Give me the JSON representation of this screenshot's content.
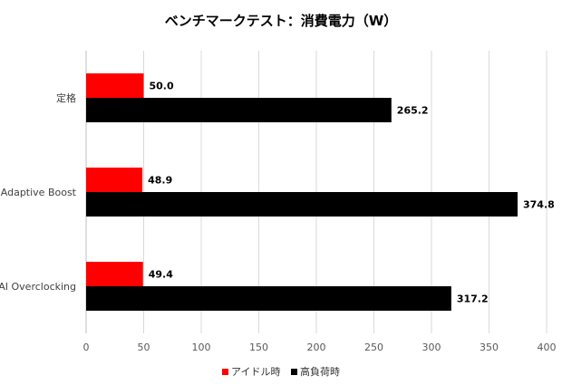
{
  "chart_data": {
    "type": "bar",
    "orientation": "horizontal",
    "title": "ベンチマークテスト：消費電力（W）",
    "categories": [
      "定格",
      "Adaptive Boost",
      "AI Overclocking"
    ],
    "series": [
      {
        "name": "アイドル時",
        "values": [
          50.0,
          48.9,
          49.4
        ],
        "labels": [
          "50.0",
          "48.9",
          "49.4"
        ],
        "color": "#ff0000"
      },
      {
        "name": "高負荷時",
        "values": [
          265.2,
          374.8,
          317.2
        ],
        "labels": [
          "265.2",
          "374.8",
          "317.2"
        ],
        "color": "#000000"
      }
    ],
    "xlim": [
      0,
      400
    ],
    "xticks": [
      "0",
      "50",
      "100",
      "150",
      "200",
      "250",
      "300",
      "350",
      "400"
    ],
    "grid": true,
    "legend_position": "bottom"
  }
}
